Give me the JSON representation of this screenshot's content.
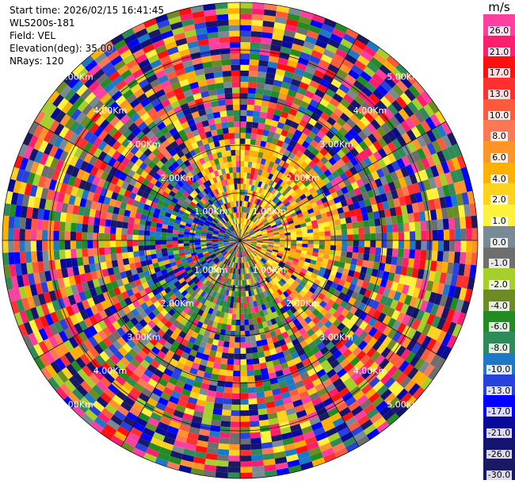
{
  "info": {
    "start_time": "Start time: 2026/02/15 16:41:45",
    "instrument": "WLS200s-181",
    "field": "Field: VEL",
    "elevation": "Elevation(deg): 35.00",
    "nrays": "NRays: 120"
  },
  "chart_data": {
    "type": "ppi-heatmap",
    "field": "VEL",
    "n_rays": 120,
    "elevation_deg": 35.0,
    "range_rings_km": [
      "1.00Km",
      "2.00Km",
      "3.00Km",
      "4.00Km",
      "5.00Km"
    ],
    "colorbar": {
      "unit": "m/s",
      "labels": [
        "26.0",
        "21.0",
        "17.0",
        "13.0",
        "10.0",
        "8.0",
        "6.0",
        "4.0",
        "2.0",
        "1.0",
        "0.0",
        "-1.0",
        "-2.0",
        "-4.0",
        "-6.0",
        "-8.0",
        "-10.0",
        "-13.0",
        "-17.0",
        "-21.0",
        "-26.0",
        "-30.0"
      ],
      "colors": [
        "#ff3fa0",
        "#ff1e6e",
        "#ff1010",
        "#ff3030",
        "#ff5a3c",
        "#ff7856",
        "#ff9428",
        "#ffb000",
        "#ffd21e",
        "#fff23c",
        "#7a8a95",
        "#6e6e6e",
        "#a5cf2a",
        "#6b8c23",
        "#228c22",
        "#2e8b57",
        "#1e78c8",
        "#2840dc",
        "#0000ff",
        "#0a0a9a",
        "#14146e",
        "#191964"
      ]
    }
  }
}
